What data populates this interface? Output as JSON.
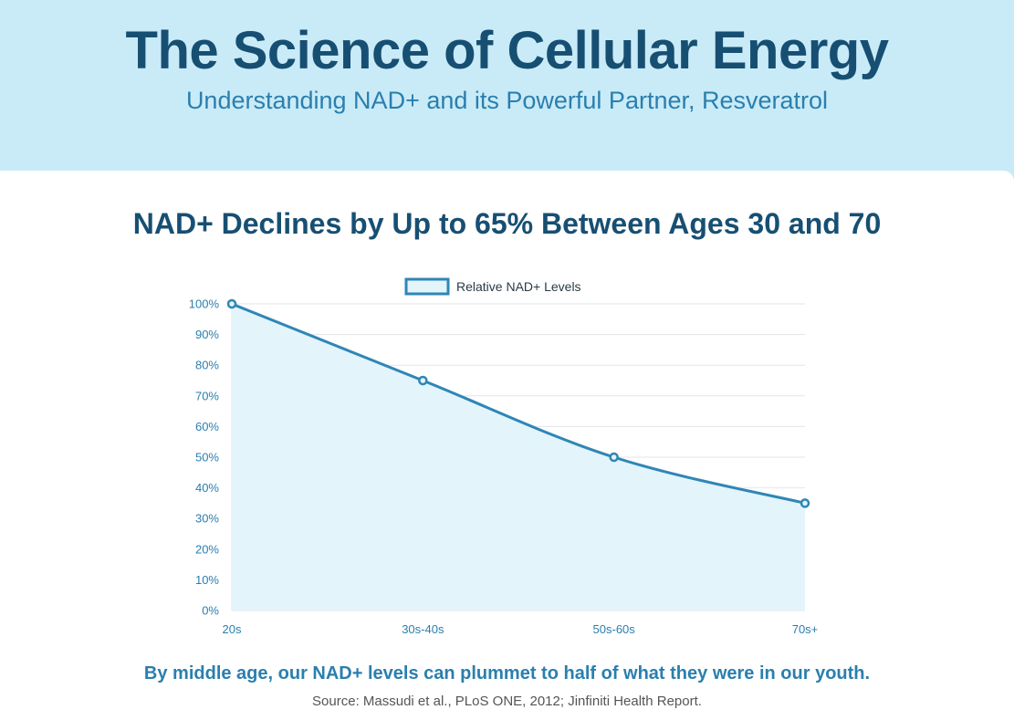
{
  "header": {
    "title": "The Science of Cellular Energy",
    "subtitle": "Understanding NAD+ and its Powerful Partner, Resveratrol"
  },
  "section": {
    "heading": "NAD+ Declines by Up to 65% Between Ages 30 and 70",
    "caption": "By middle age, our NAD+ levels can plummet to half of what they were in our youth.",
    "source": "Source: Massudi et al., PLoS ONE, 2012; Jinfiniti Health Report."
  },
  "colors": {
    "line": "#2f86b6",
    "fill": "#e3f4fb",
    "grid": "#e2e6ea",
    "tick": "#2a7fae"
  },
  "chart_data": {
    "type": "area",
    "categories": [
      "20s",
      "30s-40s",
      "50s-60s",
      "70s+"
    ],
    "series": [
      {
        "name": "Relative NAD+ Levels",
        "values": [
          100,
          75,
          50,
          35
        ]
      }
    ],
    "y_ticks": [
      "0%",
      "10%",
      "20%",
      "30%",
      "40%",
      "50%",
      "60%",
      "70%",
      "80%",
      "90%",
      "100%"
    ],
    "ylim": [
      0,
      100
    ],
    "grid": true,
    "legend": "top-center"
  }
}
